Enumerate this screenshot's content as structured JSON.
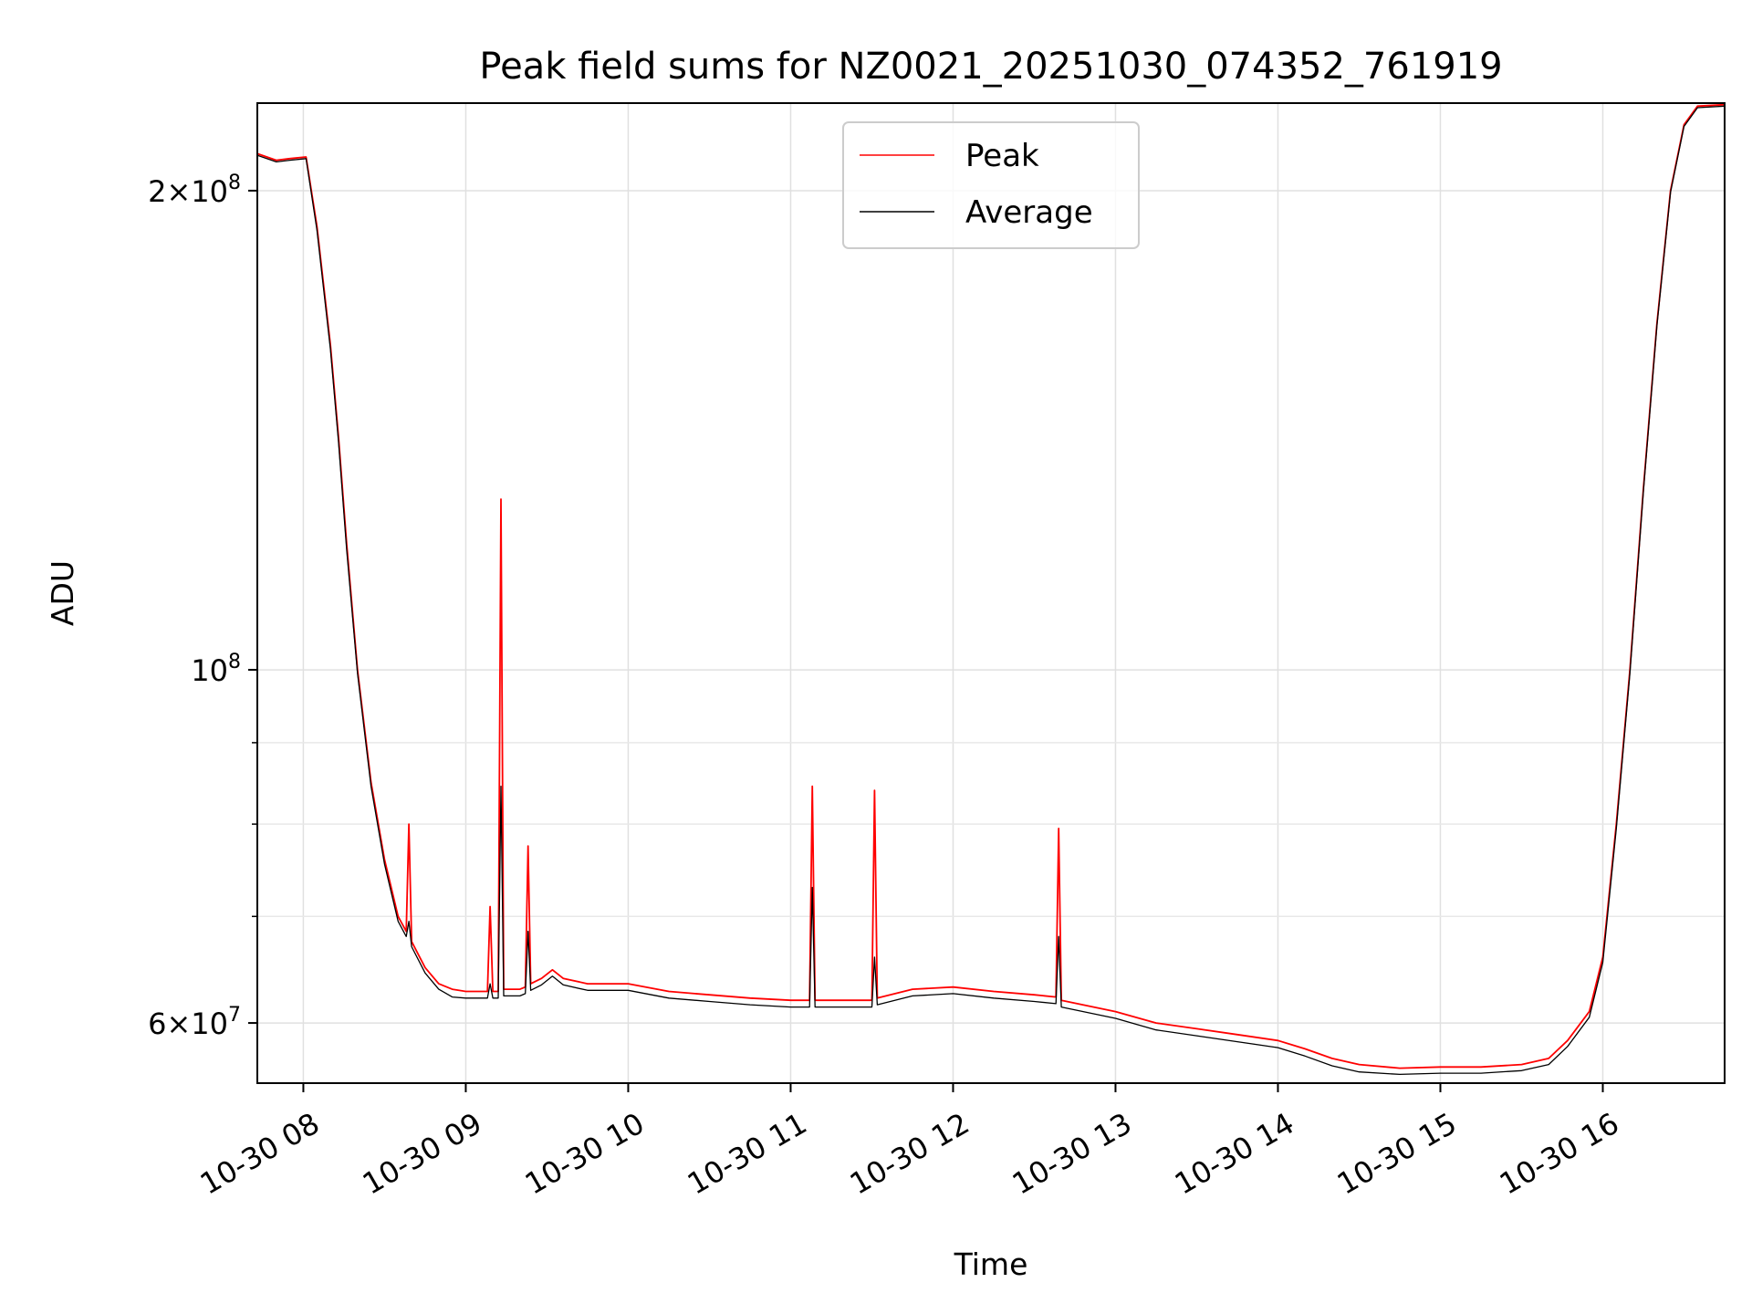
{
  "chart_data": {
    "type": "line",
    "title": "Peak field sums for NZ0021_20251030_074352_761919",
    "xlabel": "Time",
    "ylabel": "ADU",
    "yscale": "log",
    "grid": true,
    "legend_placement": "upper center",
    "xlim": [
      "2025-10-30 07:43",
      "2025-10-30 16:45"
    ],
    "ylim": [
      55000000,
      227000000
    ],
    "x_ticks": [
      {
        "value": "2025-10-30 08:00",
        "label": "10-30 08"
      },
      {
        "value": "2025-10-30 09:00",
        "label": "10-30 09"
      },
      {
        "value": "2025-10-30 10:00",
        "label": "10-30 10"
      },
      {
        "value": "2025-10-30 11:00",
        "label": "10-30 11"
      },
      {
        "value": "2025-10-30 12:00",
        "label": "10-30 12"
      },
      {
        "value": "2025-10-30 13:00",
        "label": "10-30 13"
      },
      {
        "value": "2025-10-30 14:00",
        "label": "10-30 14"
      },
      {
        "value": "2025-10-30 15:00",
        "label": "10-30 15"
      },
      {
        "value": "2025-10-30 16:00",
        "label": "10-30 16"
      }
    ],
    "y_major_ticks": [
      {
        "value": 60000000,
        "mant": "6",
        "exp": "7"
      },
      {
        "value": 100000000,
        "mant": "",
        "exp": "8"
      },
      {
        "value": 200000000,
        "mant": "2",
        "exp": "8"
      }
    ],
    "y_minor_ticks": [
      70000000,
      80000000,
      90000000
    ],
    "series": [
      {
        "name": "Peak",
        "color": "#ff0000",
        "points": [
          [
            "2025-10-30 07:43",
            211000000
          ],
          [
            "2025-10-30 07:50",
            209000000
          ],
          [
            "2025-10-30 07:55",
            209500000
          ],
          [
            "2025-10-30 08:01",
            210000000
          ],
          [
            "2025-10-30 08:05",
            190000000
          ],
          [
            "2025-10-30 08:10",
            160000000
          ],
          [
            "2025-10-30 08:13",
            140000000
          ],
          [
            "2025-10-30 08:16",
            120000000
          ],
          [
            "2025-10-30 08:20",
            100000000
          ],
          [
            "2025-10-30 08:25",
            85000000
          ],
          [
            "2025-10-30 08:30",
            76000000
          ],
          [
            "2025-10-30 08:35",
            70000000
          ],
          [
            "2025-10-30 08:38",
            68500000
          ],
          [
            "2025-10-30 08:39",
            80000000
          ],
          [
            "2025-10-30 08:40",
            67500000
          ],
          [
            "2025-10-30 08:45",
            65000000
          ],
          [
            "2025-10-30 08:50",
            63500000
          ],
          [
            "2025-10-30 08:55",
            63000000
          ],
          [
            "2025-10-30 09:00",
            62800000
          ],
          [
            "2025-10-30 09:05",
            62800000
          ],
          [
            "2025-10-30 09:08",
            62800000
          ],
          [
            "2025-10-30 09:09",
            71000000
          ],
          [
            "2025-10-30 09:10",
            62800000
          ],
          [
            "2025-10-30 09:12",
            62800000
          ],
          [
            "2025-10-30 09:13",
            128000000
          ],
          [
            "2025-10-30 09:14",
            63000000
          ],
          [
            "2025-10-30 09:20",
            63000000
          ],
          [
            "2025-10-30 09:22",
            63200000
          ],
          [
            "2025-10-30 09:23",
            77500000
          ],
          [
            "2025-10-30 09:24",
            63500000
          ],
          [
            "2025-10-30 09:28",
            64000000
          ],
          [
            "2025-10-30 09:32",
            64800000
          ],
          [
            "2025-10-30 09:36",
            64000000
          ],
          [
            "2025-10-30 09:45",
            63500000
          ],
          [
            "2025-10-30 10:00",
            63500000
          ],
          [
            "2025-10-30 10:15",
            62800000
          ],
          [
            "2025-10-30 10:30",
            62500000
          ],
          [
            "2025-10-30 10:45",
            62200000
          ],
          [
            "2025-10-30 11:00",
            62000000
          ],
          [
            "2025-10-30 11:07",
            62000000
          ],
          [
            "2025-10-30 11:08",
            84500000
          ],
          [
            "2025-10-30 11:09",
            62000000
          ],
          [
            "2025-10-30 11:30",
            62000000
          ],
          [
            "2025-10-30 11:31",
            84000000
          ],
          [
            "2025-10-30 11:32",
            62200000
          ],
          [
            "2025-10-30 11:45",
            63000000
          ],
          [
            "2025-10-30 12:00",
            63200000
          ],
          [
            "2025-10-30 12:15",
            62800000
          ],
          [
            "2025-10-30 12:30",
            62500000
          ],
          [
            "2025-10-30 12:38",
            62300000
          ],
          [
            "2025-10-30 12:39",
            79500000
          ],
          [
            "2025-10-30 12:40",
            62000000
          ],
          [
            "2025-10-30 13:00",
            61000000
          ],
          [
            "2025-10-30 13:15",
            60000000
          ],
          [
            "2025-10-30 13:30",
            59500000
          ],
          [
            "2025-10-30 13:45",
            59000000
          ],
          [
            "2025-10-30 14:00",
            58500000
          ],
          [
            "2025-10-30 14:10",
            57800000
          ],
          [
            "2025-10-30 14:20",
            57000000
          ],
          [
            "2025-10-30 14:30",
            56500000
          ],
          [
            "2025-10-30 14:45",
            56200000
          ],
          [
            "2025-10-30 15:00",
            56300000
          ],
          [
            "2025-10-30 15:15",
            56300000
          ],
          [
            "2025-10-30 15:30",
            56500000
          ],
          [
            "2025-10-30 15:40",
            57000000
          ],
          [
            "2025-10-30 15:47",
            58500000
          ],
          [
            "2025-10-30 15:55",
            61000000
          ],
          [
            "2025-10-30 16:00",
            66000000
          ],
          [
            "2025-10-30 16:05",
            80000000
          ],
          [
            "2025-10-30 16:10",
            100000000
          ],
          [
            "2025-10-30 16:15",
            130000000
          ],
          [
            "2025-10-30 16:20",
            165000000
          ],
          [
            "2025-10-30 16:25",
            200000000
          ],
          [
            "2025-10-30 16:30",
            220000000
          ],
          [
            "2025-10-30 16:35",
            226000000
          ],
          [
            "2025-10-30 16:45",
            226500000
          ]
        ]
      },
      {
        "name": "Average",
        "color": "#000000",
        "points": [
          [
            "2025-10-30 07:43",
            210500000
          ],
          [
            "2025-10-30 07:50",
            208500000
          ],
          [
            "2025-10-30 07:55",
            209000000
          ],
          [
            "2025-10-30 08:01",
            209500000
          ],
          [
            "2025-10-30 08:05",
            189000000
          ],
          [
            "2025-10-30 08:10",
            159000000
          ],
          [
            "2025-10-30 08:13",
            139000000
          ],
          [
            "2025-10-30 08:16",
            119000000
          ],
          [
            "2025-10-30 08:20",
            99500000
          ],
          [
            "2025-10-30 08:25",
            84500000
          ],
          [
            "2025-10-30 08:30",
            75500000
          ],
          [
            "2025-10-30 08:35",
            69500000
          ],
          [
            "2025-10-30 08:38",
            68000000
          ],
          [
            "2025-10-30 08:39",
            69500000
          ],
          [
            "2025-10-30 08:40",
            67000000
          ],
          [
            "2025-10-30 08:45",
            64500000
          ],
          [
            "2025-10-30 08:50",
            63000000
          ],
          [
            "2025-10-30 08:55",
            62300000
          ],
          [
            "2025-10-30 09:00",
            62200000
          ],
          [
            "2025-10-30 09:05",
            62200000
          ],
          [
            "2025-10-30 09:08",
            62200000
          ],
          [
            "2025-10-30 09:09",
            63500000
          ],
          [
            "2025-10-30 09:10",
            62200000
          ],
          [
            "2025-10-30 09:12",
            62200000
          ],
          [
            "2025-10-30 09:13",
            84500000
          ],
          [
            "2025-10-30 09:14",
            62400000
          ],
          [
            "2025-10-30 09:20",
            62400000
          ],
          [
            "2025-10-30 09:22",
            62600000
          ],
          [
            "2025-10-30 09:23",
            68500000
          ],
          [
            "2025-10-30 09:24",
            62900000
          ],
          [
            "2025-10-30 09:28",
            63400000
          ],
          [
            "2025-10-30 09:32",
            64200000
          ],
          [
            "2025-10-30 09:36",
            63400000
          ],
          [
            "2025-10-30 09:45",
            62900000
          ],
          [
            "2025-10-30 10:00",
            62900000
          ],
          [
            "2025-10-30 10:15",
            62200000
          ],
          [
            "2025-10-30 10:30",
            61900000
          ],
          [
            "2025-10-30 10:45",
            61600000
          ],
          [
            "2025-10-30 11:00",
            61400000
          ],
          [
            "2025-10-30 11:07",
            61400000
          ],
          [
            "2025-10-30 11:08",
            73000000
          ],
          [
            "2025-10-30 11:09",
            61400000
          ],
          [
            "2025-10-30 11:30",
            61400000
          ],
          [
            "2025-10-30 11:31",
            66000000
          ],
          [
            "2025-10-30 11:32",
            61600000
          ],
          [
            "2025-10-30 11:45",
            62400000
          ],
          [
            "2025-10-30 12:00",
            62600000
          ],
          [
            "2025-10-30 12:15",
            62200000
          ],
          [
            "2025-10-30 12:30",
            61900000
          ],
          [
            "2025-10-30 12:38",
            61700000
          ],
          [
            "2025-10-30 12:39",
            68000000
          ],
          [
            "2025-10-30 12:40",
            61400000
          ],
          [
            "2025-10-30 13:00",
            60400000
          ],
          [
            "2025-10-30 13:15",
            59400000
          ],
          [
            "2025-10-30 13:30",
            58900000
          ],
          [
            "2025-10-30 13:45",
            58400000
          ],
          [
            "2025-10-30 14:00",
            57900000
          ],
          [
            "2025-10-30 14:10",
            57200000
          ],
          [
            "2025-10-30 14:20",
            56400000
          ],
          [
            "2025-10-30 14:30",
            55900000
          ],
          [
            "2025-10-30 14:45",
            55700000
          ],
          [
            "2025-10-30 15:00",
            55800000
          ],
          [
            "2025-10-30 15:15",
            55800000
          ],
          [
            "2025-10-30 15:30",
            56000000
          ],
          [
            "2025-10-30 15:40",
            56500000
          ],
          [
            "2025-10-30 15:47",
            58000000
          ],
          [
            "2025-10-30 15:55",
            60500000
          ],
          [
            "2025-10-30 16:00",
            65500000
          ],
          [
            "2025-10-30 16:05",
            79500000
          ],
          [
            "2025-10-30 16:10",
            99500000
          ],
          [
            "2025-10-30 16:15",
            129500000
          ],
          [
            "2025-10-30 16:20",
            164500000
          ],
          [
            "2025-10-30 16:25",
            199500000
          ],
          [
            "2025-10-30 16:30",
            219500000
          ],
          [
            "2025-10-30 16:35",
            225500000
          ],
          [
            "2025-10-30 16:45",
            226000000
          ]
        ]
      }
    ]
  }
}
